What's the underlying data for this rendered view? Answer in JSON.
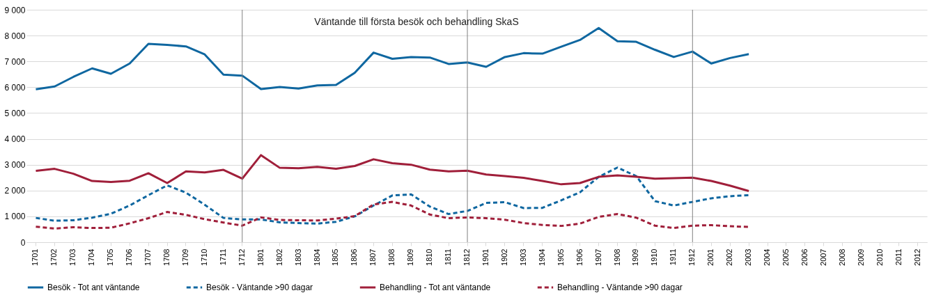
{
  "chart_data": {
    "type": "line",
    "title": "Väntande till första besök och behandling SkaS",
    "categories": [
      "1701",
      "1702",
      "1703",
      "1704",
      "1705",
      "1706",
      "1707",
      "1708",
      "1709",
      "1710",
      "1711",
      "1712",
      "1801",
      "1802",
      "1803",
      "1804",
      "1805",
      "1806",
      "1807",
      "1808",
      "1809",
      "1810",
      "1811",
      "1812",
      "1901",
      "1902",
      "1903",
      "1904",
      "1905",
      "1906",
      "1907",
      "1908",
      "1909",
      "1910",
      "1911",
      "1912",
      "2001",
      "2002",
      "2003",
      "2004",
      "2005",
      "2006",
      "2007",
      "2008",
      "2009",
      "2010",
      "2011",
      "2012"
    ],
    "series": [
      {
        "name": "Besök - Tot ant väntande",
        "color": "#0f67a0",
        "line_style": "solid",
        "values": [
          5920,
          6030,
          6400,
          6730,
          6520,
          6920,
          7680,
          7640,
          7580,
          7270,
          6490,
          6450,
          5930,
          6010,
          5950,
          6070,
          6090,
          6560,
          7340,
          7100,
          7170,
          7150,
          6900,
          6960,
          6790,
          7170,
          7320,
          7300,
          7570,
          7830,
          8290,
          7780,
          7760,
          7450,
          7170,
          7380,
          6920,
          7130,
          7280,
          null,
          null,
          null,
          null,
          null,
          null,
          null,
          null,
          null
        ]
      },
      {
        "name": "Besök - Väntande >90 dagar",
        "color": "#0f67a0",
        "line_style": "dashed",
        "values": [
          940,
          830,
          850,
          950,
          1100,
          1420,
          1820,
          2200,
          1920,
          1450,
          940,
          880,
          880,
          770,
          740,
          720,
          790,
          1000,
          1420,
          1810,
          1850,
          1380,
          1090,
          1210,
          1520,
          1550,
          1320,
          1330,
          1620,
          1930,
          2530,
          2890,
          2560,
          1590,
          1420,
          1560,
          1700,
          1780,
          1820,
          null,
          null,
          null,
          null,
          null,
          null,
          null,
          null,
          null
        ]
      },
      {
        "name": "Behandling - Tot ant väntande",
        "color": "#a01f3a",
        "line_style": "solid",
        "values": [
          2760,
          2840,
          2650,
          2370,
          2330,
          2380,
          2670,
          2290,
          2740,
          2700,
          2800,
          2460,
          3370,
          2880,
          2860,
          2920,
          2840,
          2950,
          3210,
          3060,
          3000,
          2810,
          2740,
          2770,
          2620,
          2560,
          2490,
          2370,
          2240,
          2290,
          2530,
          2590,
          2530,
          2460,
          2480,
          2500,
          2370,
          2190,
          1980,
          null,
          null,
          null,
          null,
          null,
          null,
          null,
          null,
          null
        ]
      },
      {
        "name": "Behandling - Väntande >90 dagar",
        "color": "#a01f3a",
        "line_style": "dashed",
        "values": [
          600,
          530,
          580,
          550,
          560,
          730,
          930,
          1170,
          1060,
          890,
          760,
          640,
          960,
          860,
          850,
          840,
          910,
          1010,
          1460,
          1560,
          1420,
          1070,
          930,
          960,
          930,
          870,
          740,
          670,
          630,
          720,
          980,
          1090,
          950,
          640,
          550,
          640,
          660,
          620,
          590,
          null,
          null,
          null,
          null,
          null,
          null,
          null,
          null,
          null
        ]
      }
    ],
    "ylim": [
      0,
      9000
    ],
    "yticks": [
      {
        "value": 0,
        "label": "0"
      },
      {
        "value": 1000,
        "label": "1 000"
      },
      {
        "value": 2000,
        "label": "2 000"
      },
      {
        "value": 3000,
        "label": "3 000"
      },
      {
        "value": 4000,
        "label": "4 000"
      },
      {
        "value": 5000,
        "label": "5 000"
      },
      {
        "value": 6000,
        "label": "6 000"
      },
      {
        "value": 7000,
        "label": "7 000"
      },
      {
        "value": 8000,
        "label": "8 000"
      },
      {
        "value": 9000,
        "label": "9 000"
      }
    ],
    "grid": "y",
    "legend": "bottom",
    "marker": "none",
    "ref_lines": [
      {
        "axis": "x",
        "value": "1712",
        "color": "#808080"
      },
      {
        "axis": "x",
        "value": "1812",
        "color": "#808080"
      },
      {
        "axis": "x",
        "value": "1912",
        "color": "#808080"
      }
    ]
  }
}
